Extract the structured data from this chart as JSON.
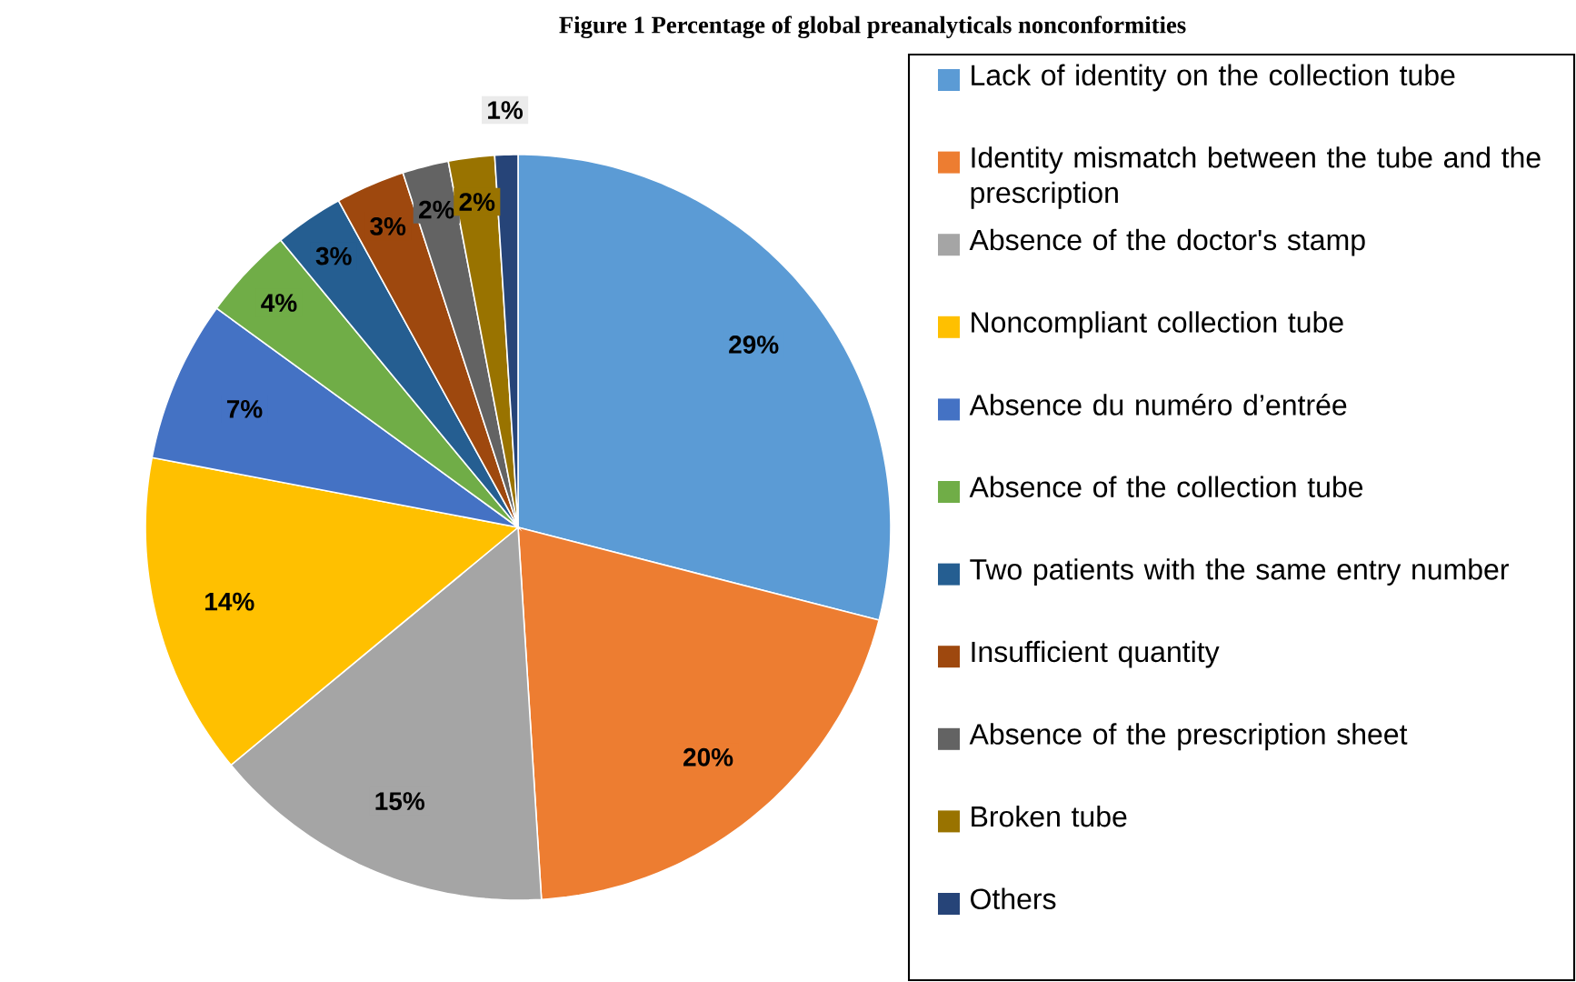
{
  "chart_data": {
    "type": "pie",
    "title": "Figure 1 Percentage of global preanalyticals nonconformities",
    "categories": [
      "Lack of identity on the collection tube",
      "Identity mismatch between the tube and the prescription",
      "Absence of the doctor's stamp",
      "Noncompliant collection tube",
      "Absence du numéro d’entrée",
      "Absence of the collection tube",
      "Two patients with the same entry number",
      "Insufficient quantity",
      "Absence of the prescription sheet",
      "Broken tube",
      "Others"
    ],
    "values": [
      29,
      20,
      15,
      14,
      7,
      4,
      3,
      3,
      2,
      2,
      1
    ],
    "value_labels": [
      "29%",
      "20%",
      "15%",
      "14%",
      "7%",
      "4%",
      "3%",
      "3%",
      "2%",
      "2%",
      "1%"
    ],
    "colors": [
      "#5b9bd5",
      "#ed7d31",
      "#a5a5a5",
      "#ffc000",
      "#4472c4",
      "#70ad47",
      "#255e91",
      "#9e480e",
      "#636363",
      "#997300",
      "#264478"
    ],
    "legend": "right"
  }
}
